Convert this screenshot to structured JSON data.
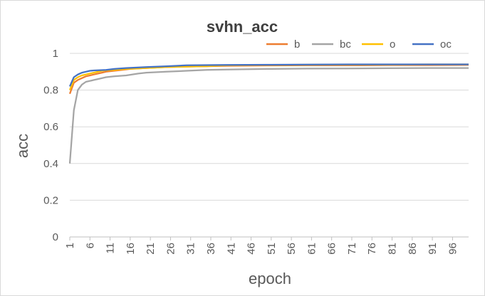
{
  "chart_data": {
    "type": "line",
    "title": "svhn_acc",
    "xlabel": "epoch",
    "ylabel": "acc",
    "ylim": [
      0,
      1
    ],
    "yticks": [
      "0",
      "0.2",
      "0.4",
      "0.6",
      "0.8",
      "1"
    ],
    "xticks": [
      "1",
      "6",
      "11",
      "16",
      "21",
      "26",
      "31",
      "36",
      "41",
      "46",
      "51",
      "56",
      "61",
      "66",
      "71",
      "76",
      "81",
      "86",
      "91",
      "96"
    ],
    "xrange": [
      1,
      100
    ],
    "grid": "horizontal",
    "legend_position": "top-right",
    "series": [
      {
        "name": "b",
        "color": "#ED7D31",
        "points": [
          [
            1,
            0.78
          ],
          [
            2,
            0.84
          ],
          [
            3,
            0.855
          ],
          [
            4,
            0.865
          ],
          [
            5,
            0.875
          ],
          [
            6,
            0.88
          ],
          [
            7,
            0.885
          ],
          [
            8,
            0.89
          ],
          [
            9,
            0.895
          ],
          [
            10,
            0.9
          ],
          [
            12,
            0.905
          ],
          [
            14,
            0.91
          ],
          [
            16,
            0.915
          ],
          [
            20,
            0.92
          ],
          [
            25,
            0.925
          ],
          [
            30,
            0.928
          ],
          [
            35,
            0.93
          ],
          [
            40,
            0.932
          ],
          [
            50,
            0.934
          ],
          [
            60,
            0.935
          ],
          [
            70,
            0.935
          ],
          [
            80,
            0.936
          ],
          [
            90,
            0.936
          ],
          [
            100,
            0.937
          ]
        ]
      },
      {
        "name": "bc",
        "color": "#A5A5A5",
        "points": [
          [
            1,
            0.4
          ],
          [
            2,
            0.69
          ],
          [
            3,
            0.8
          ],
          [
            4,
            0.83
          ],
          [
            5,
            0.845
          ],
          [
            6,
            0.85
          ],
          [
            7,
            0.855
          ],
          [
            8,
            0.86
          ],
          [
            10,
            0.87
          ],
          [
            12,
            0.875
          ],
          [
            15,
            0.88
          ],
          [
            18,
            0.89
          ],
          [
            20,
            0.895
          ],
          [
            25,
            0.9
          ],
          [
            30,
            0.905
          ],
          [
            35,
            0.91
          ],
          [
            40,
            0.912
          ],
          [
            50,
            0.915
          ],
          [
            60,
            0.917
          ],
          [
            70,
            0.918
          ],
          [
            80,
            0.919
          ],
          [
            90,
            0.92
          ],
          [
            100,
            0.92
          ]
        ]
      },
      {
        "name": "o",
        "color": "#FFC000",
        "points": [
          [
            1,
            0.8
          ],
          [
            2,
            0.855
          ],
          [
            3,
            0.87
          ],
          [
            4,
            0.88
          ],
          [
            5,
            0.885
          ],
          [
            6,
            0.89
          ],
          [
            7,
            0.895
          ],
          [
            8,
            0.9
          ],
          [
            9,
            0.905
          ],
          [
            10,
            0.908
          ],
          [
            12,
            0.91
          ],
          [
            15,
            0.915
          ],
          [
            20,
            0.92
          ],
          [
            25,
            0.925
          ],
          [
            30,
            0.928
          ],
          [
            35,
            0.93
          ],
          [
            40,
            0.935
          ],
          [
            50,
            0.937
          ],
          [
            60,
            0.938
          ],
          [
            70,
            0.939
          ],
          [
            80,
            0.939
          ],
          [
            90,
            0.94
          ],
          [
            100,
            0.94
          ]
        ]
      },
      {
        "name": "oc",
        "color": "#4472C4",
        "points": [
          [
            1,
            0.82
          ],
          [
            2,
            0.87
          ],
          [
            3,
            0.885
          ],
          [
            4,
            0.895
          ],
          [
            5,
            0.9
          ],
          [
            6,
            0.905
          ],
          [
            7,
            0.907
          ],
          [
            8,
            0.908
          ],
          [
            10,
            0.91
          ],
          [
            12,
            0.915
          ],
          [
            15,
            0.92
          ],
          [
            20,
            0.925
          ],
          [
            25,
            0.93
          ],
          [
            30,
            0.935
          ],
          [
            35,
            0.936
          ],
          [
            40,
            0.937
          ],
          [
            50,
            0.938
          ],
          [
            60,
            0.939
          ],
          [
            70,
            0.94
          ],
          [
            80,
            0.94
          ],
          [
            90,
            0.94
          ],
          [
            100,
            0.94
          ]
        ]
      }
    ]
  }
}
